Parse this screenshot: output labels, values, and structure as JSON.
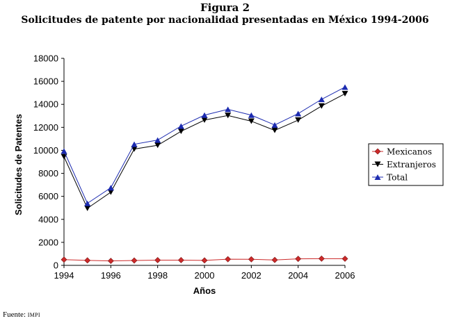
{
  "figure_label": "Figura 2",
  "title": "Solicitudes de patente por nacionalidad presentadas en México 1994-2006",
  "source_prefix": "Fuente:",
  "source_name": "IMPI",
  "chart_data": {
    "type": "line",
    "xlabel": "Años",
    "ylabel": "Solicitudes de Patentes",
    "xlim": [
      1994,
      2006
    ],
    "ylim": [
      0,
      18000
    ],
    "x_ticks": [
      "1994",
      "1996",
      "1998",
      "2000",
      "2002",
      "2004",
      "2006"
    ],
    "y_ticks": [
      "0",
      "2000",
      "4000",
      "6000",
      "8000",
      "10000",
      "12000",
      "14000",
      "16000",
      "18000"
    ],
    "x": [
      1994,
      1995,
      1996,
      1997,
      1998,
      1999,
      2000,
      2001,
      2002,
      2003,
      2004,
      2005,
      2006
    ],
    "series": [
      {
        "name": "Mexicanos",
        "color": "#cc2a2a",
        "marker": "diamond",
        "values": [
          498,
          432,
          386,
          420,
          453,
          455,
          431,
          534,
          526,
          468,
          565,
          584,
          574
        ]
      },
      {
        "name": "Extranjeros",
        "color": "#000000",
        "marker": "triangle-down",
        "values": [
          9446,
          4961,
          6365,
          10111,
          10440,
          11655,
          12630,
          13032,
          12536,
          11739,
          12630,
          13852,
          14926
        ]
      },
      {
        "name": "Total",
        "color": "#1c2bb0",
        "marker": "triangle-up",
        "values": [
          9944,
          5393,
          6751,
          10531,
          10893,
          12110,
          13061,
          13566,
          13062,
          12207,
          13195,
          14436,
          15500
        ]
      }
    ],
    "legend_position": "right",
    "grid": false
  }
}
